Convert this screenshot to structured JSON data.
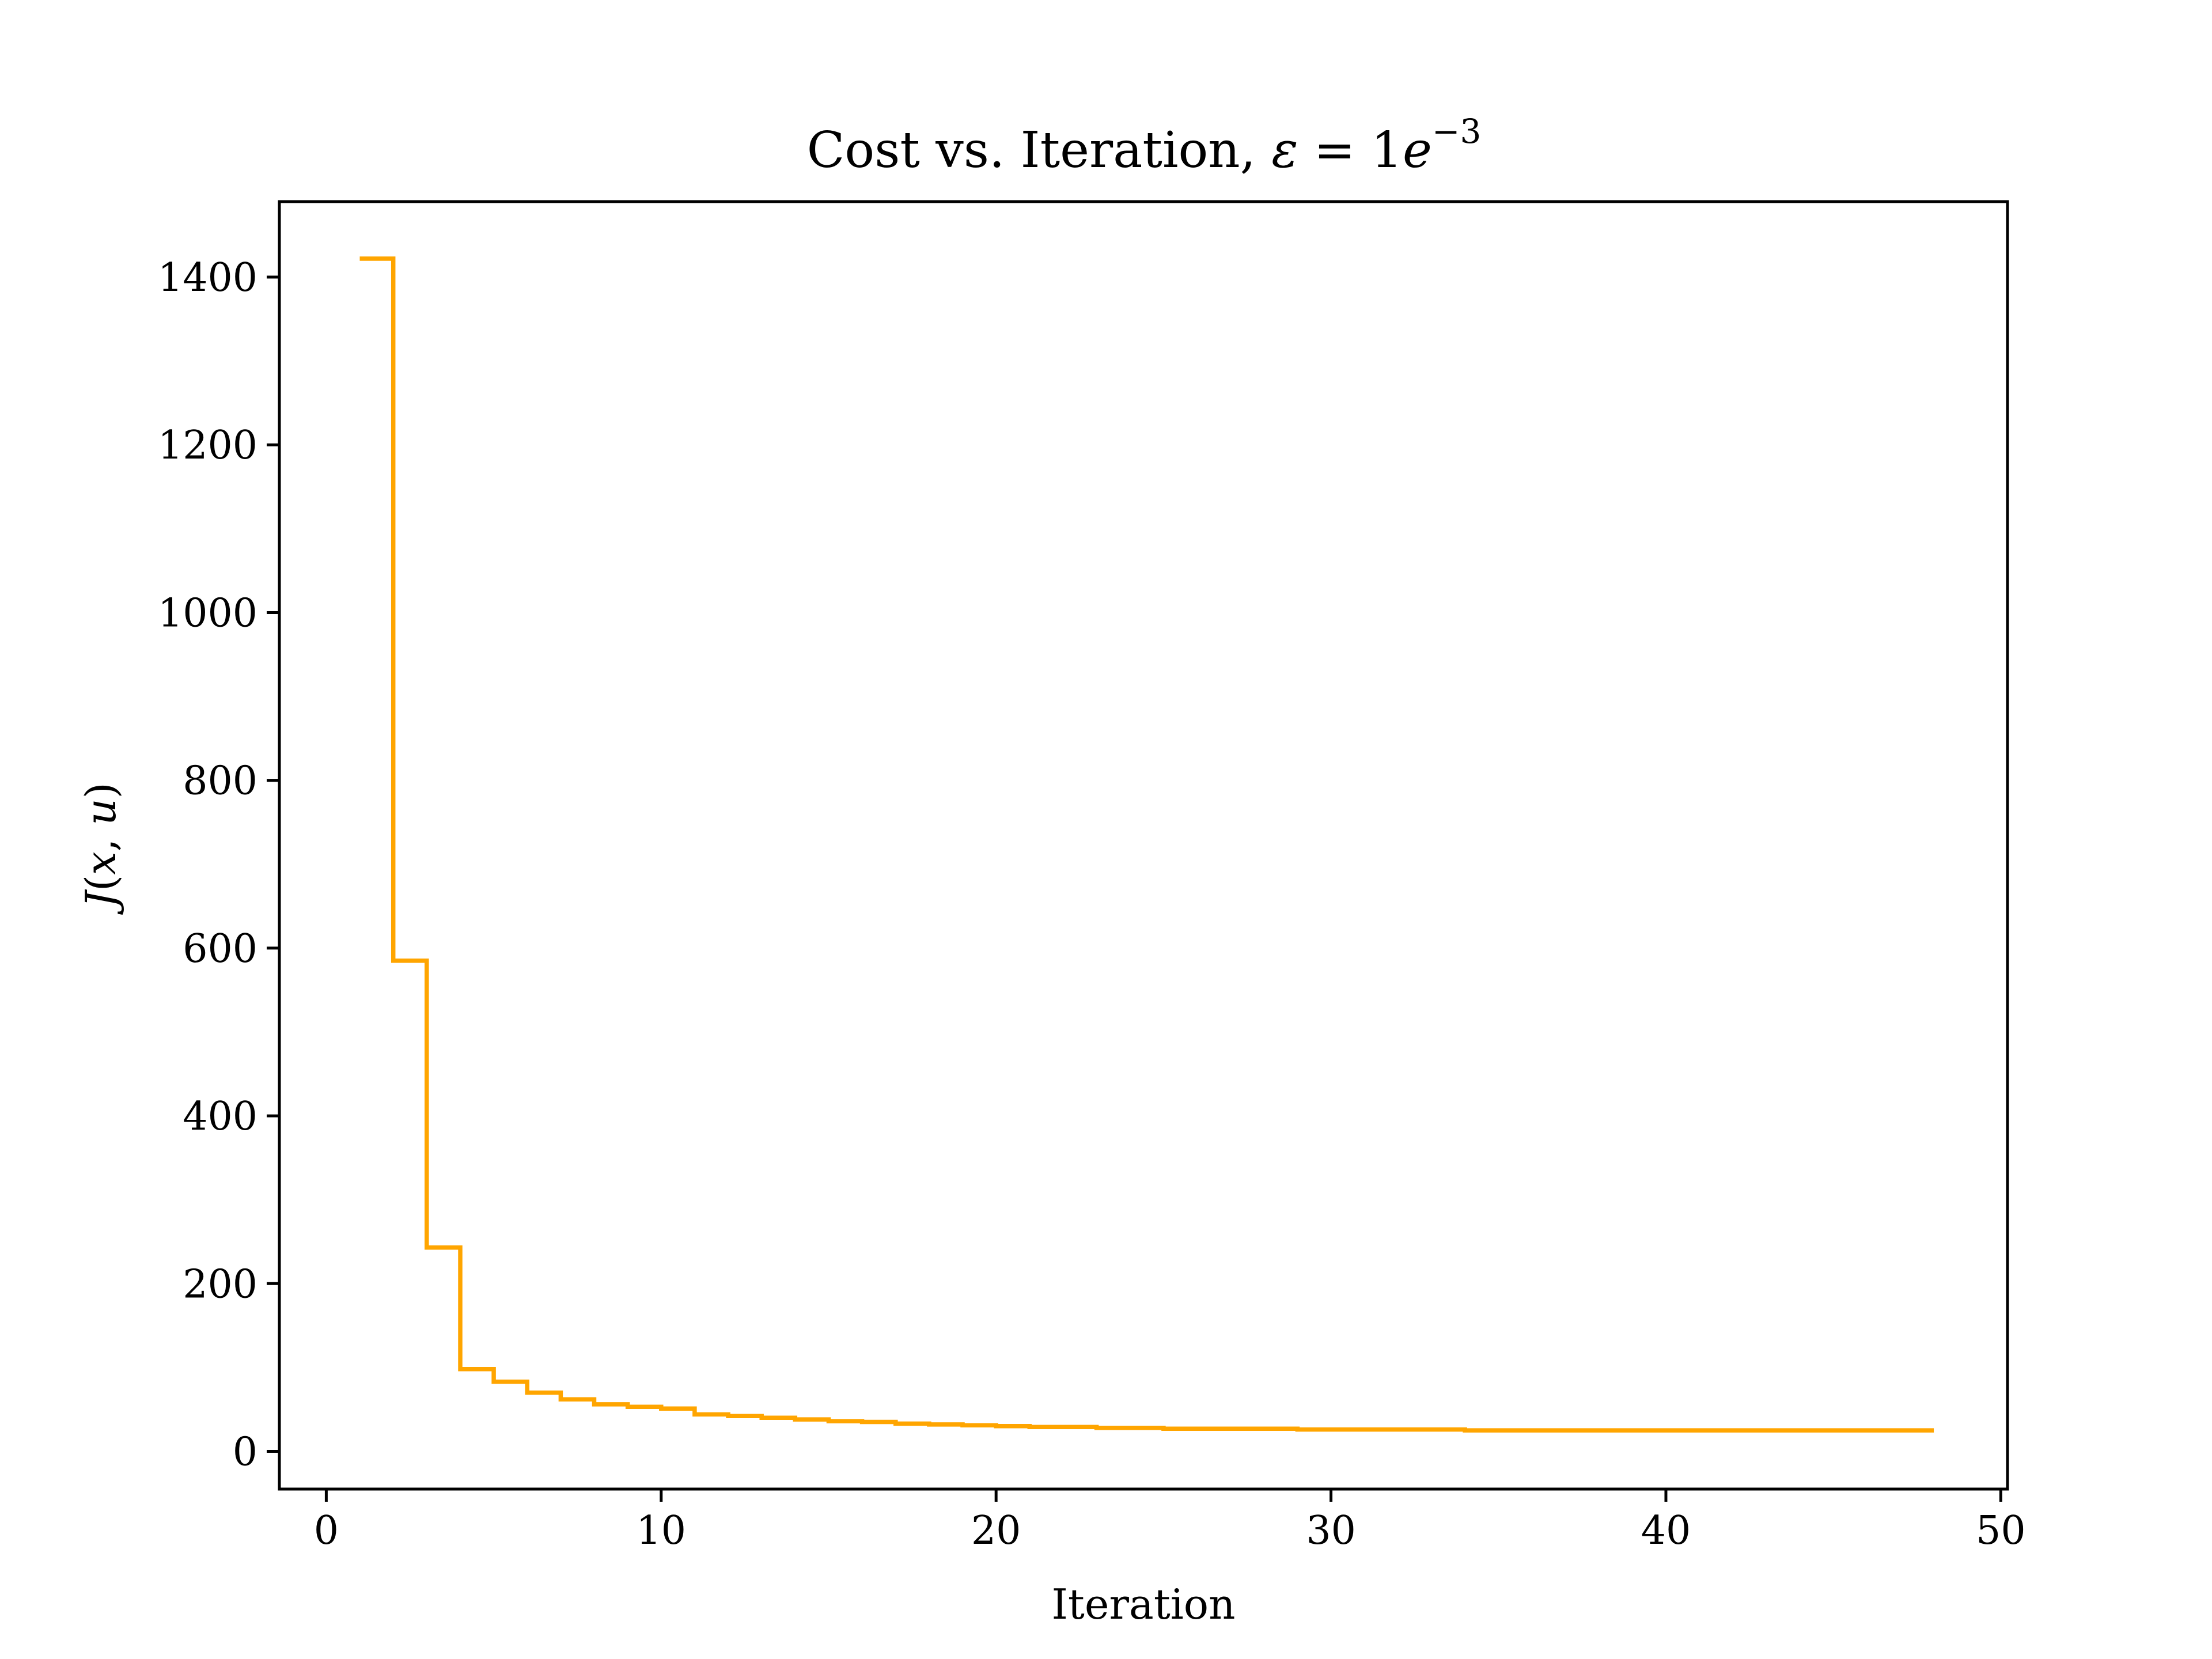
{
  "chart_data": {
    "type": "line",
    "drawstyle": "steps-post",
    "title": {
      "prefix": "Cost vs. Iteration, ",
      "math_symbol": "ε",
      "math_eq": " = 1",
      "math_e": "e",
      "math_exp": "−3"
    },
    "xlabel": "Iteration",
    "ylabel": {
      "main": "J",
      "open": "(",
      "x": "x",
      "comma": ", ",
      "u": "u",
      "close": ")"
    },
    "xlim": [
      -1.4,
      50.2
    ],
    "ylim": [
      -45,
      1490
    ],
    "xticks": [
      0,
      10,
      20,
      30,
      40,
      50
    ],
    "xtick_labels": [
      "0",
      "10",
      "20",
      "30",
      "40",
      "50"
    ],
    "yticks": [
      0,
      200,
      400,
      600,
      800,
      1000,
      1200,
      1400
    ],
    "ytick_labels": [
      "0",
      "200",
      "400",
      "600",
      "800",
      "1000",
      "1200",
      "1400"
    ],
    "grid": false,
    "legend": "none",
    "series": [
      {
        "color": "#ffa500",
        "x": [
          1,
          2,
          3,
          4,
          5,
          6,
          7,
          8,
          9,
          10,
          11,
          12,
          13,
          14,
          15,
          16,
          17,
          18,
          19,
          20,
          21,
          22,
          23,
          24,
          25,
          26,
          27,
          28,
          29,
          30,
          31,
          32,
          33,
          34,
          35,
          36,
          37,
          38,
          39,
          40,
          41,
          42,
          43,
          44,
          45,
          46,
          47,
          48
        ],
        "y": [
          1422,
          585,
          243,
          98,
          83,
          70,
          62,
          56,
          53,
          51,
          44,
          42,
          40,
          38,
          36,
          35,
          33,
          32,
          31,
          30,
          29,
          29,
          28,
          28,
          27,
          27,
          27,
          27,
          26,
          26,
          26,
          26,
          26,
          25,
          25,
          25,
          25,
          25,
          25,
          25,
          25,
          25,
          25,
          25,
          25,
          25,
          25,
          25
        ]
      }
    ]
  }
}
